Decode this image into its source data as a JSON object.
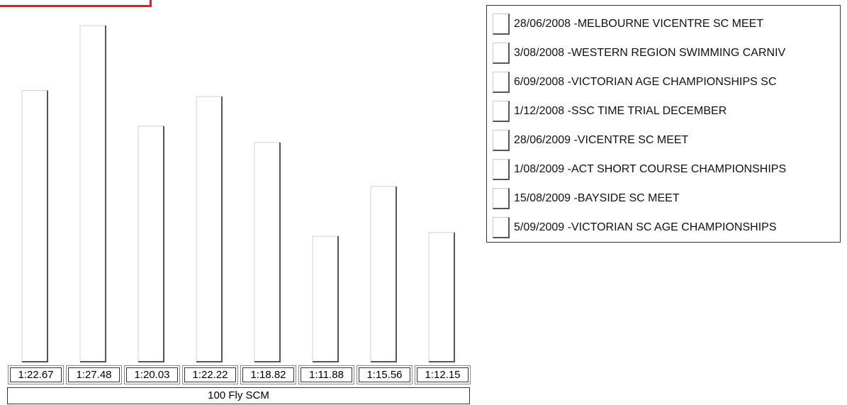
{
  "chart_data": {
    "type": "bar",
    "title": "100 Fly SCM",
    "categories": [
      "28/06/2008 -MELBOURNE VICENTRE SC MEET",
      "3/08/2008 -WESTERN REGION SWIMMING CARNIV",
      "6/09/2008 -VICTORIAN AGE CHAMPIONSHIPS SC",
      "1/12/2008 -SSC TIME TRIAL DECEMBER",
      "28/06/2009 -VICENTRE SC MEET",
      "1/08/2009 -ACT SHORT COURSE CHAMPIONSHIPS",
      "15/08/2009 -BAYSIDE SC MEET",
      "5/09/2009 -VICTORIAN SC AGE CHAMPIONSHIPS"
    ],
    "value_labels": [
      "1:22.67",
      "1:27.48",
      "1:20.03",
      "1:22.22",
      "1:18.82",
      "1:11.88",
      "1:15.56",
      "1:12.15"
    ],
    "values": [
      82.67,
      87.48,
      80.03,
      82.22,
      78.82,
      71.88,
      75.56,
      72.15
    ],
    "units": "seconds",
    "legend_position": "top-right",
    "grid": false,
    "bar_color": "#ffffff"
  }
}
